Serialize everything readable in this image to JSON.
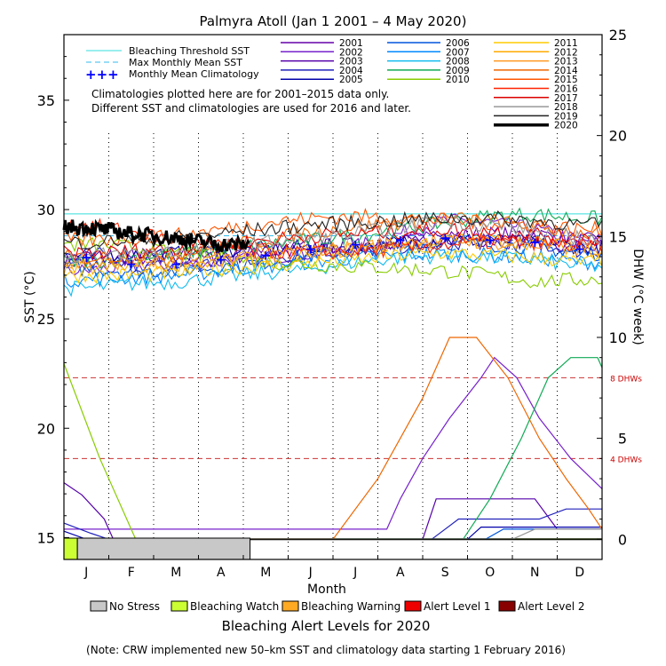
{
  "title": "Palmyra Atoll      (Jan 1 2001 – 4 May 2020)",
  "chart_data": {
    "type": "line",
    "title": "Palmyra Atoll      (Jan 1 2001 – 4 May 2020)",
    "xlabel": "Month",
    "ylabel_left": "SST (°C)",
    "ylabel_right": "DHW (°C week)",
    "xlim": [
      0,
      12
    ],
    "ylim_sst": [
      14,
      38
    ],
    "ylim_dhw": [
      -1,
      25
    ],
    "x_ticks": [
      {
        "pos": 0.5,
        "label": "J"
      },
      {
        "pos": 1.5,
        "label": "F"
      },
      {
        "pos": 2.5,
        "label": "M"
      },
      {
        "pos": 3.5,
        "label": "A"
      },
      {
        "pos": 4.5,
        "label": "M"
      },
      {
        "pos": 5.5,
        "label": "J"
      },
      {
        "pos": 6.5,
        "label": "J"
      },
      {
        "pos": 7.5,
        "label": "A"
      },
      {
        "pos": 8.5,
        "label": "S"
      },
      {
        "pos": 9.5,
        "label": "O"
      },
      {
        "pos": 10.5,
        "label": "N"
      },
      {
        "pos": 11.5,
        "label": "D"
      }
    ],
    "y_ticks_sst": [
      15,
      20,
      25,
      30,
      35
    ],
    "y_ticks_dhw": [
      0,
      5,
      10,
      15,
      20,
      25
    ],
    "bleaching_threshold_sst": 29.8,
    "max_monthly_mean_sst": 28.8,
    "monthly_mean_climatology": [
      27.8,
      27.5,
      27.5,
      27.7,
      27.9,
      28.2,
      28.4,
      28.6,
      28.7,
      28.6,
      28.5,
      28.2
    ],
    "dhw_reference_lines": [
      {
        "value": 8,
        "label": "8 DHWs"
      },
      {
        "value": 4,
        "label": "4 DHWs"
      }
    ],
    "legend_items": [
      {
        "label": "Bleaching Threshold SST",
        "color": "#33dddd",
        "style": "solid"
      },
      {
        "label": "Max Monthly Mean SST",
        "color": "#33bbee",
        "style": "dashed"
      },
      {
        "label": "Monthly Mean Climatology",
        "color": "#0000ff",
        "style": "plus"
      }
    ],
    "note_lines": [
      "Climatologies plotted here are for 2001–2015 data only.",
      "Different SST and climatologies are used for 2016 and later."
    ],
    "series": [
      {
        "name": "2001",
        "color": "#6600aa",
        "sst": [
          27.6,
          27.8,
          27.7,
          27.8,
          28.0,
          28.1,
          28.2,
          28.5,
          28.8,
          28.9,
          28.9,
          28.6
        ]
      },
      {
        "name": "2002",
        "color": "#7722cc",
        "sst": [
          27.2,
          27.4,
          27.5,
          27.6,
          27.8,
          28.0,
          28.3,
          28.9,
          29.5,
          29.4,
          29.1,
          28.6
        ],
        "dhw": [
          [
            0,
            0.5
          ],
          [
            7.2,
            0.5
          ],
          [
            7.5,
            2
          ],
          [
            8.0,
            4
          ],
          [
            8.6,
            6
          ],
          [
            9.3,
            8
          ],
          [
            9.6,
            9
          ],
          [
            10.1,
            8
          ],
          [
            10.6,
            6
          ],
          [
            11.3,
            4
          ],
          [
            12.0,
            2.5
          ]
        ]
      },
      {
        "name": "2003",
        "color": "#5500aa",
        "sst": [
          27.8,
          27.9,
          27.9,
          28.0,
          28.1,
          28.3,
          28.4,
          28.6,
          28.7,
          28.6,
          28.5,
          28.3
        ],
        "dhw": [
          [
            0,
            2.8
          ],
          [
            0.4,
            2.2
          ],
          [
            0.9,
            1
          ],
          [
            1.1,
            0
          ],
          [
            8.0,
            0
          ],
          [
            8.3,
            2
          ],
          [
            9.5,
            2
          ],
          [
            10.5,
            2
          ],
          [
            11.0,
            0.5
          ],
          [
            12.0,
            0.5
          ]
        ]
      },
      {
        "name": "2004",
        "color": "#2222bb",
        "sst": [
          27.5,
          27.4,
          27.4,
          27.6,
          27.8,
          28.0,
          28.1,
          28.3,
          28.5,
          28.5,
          28.4,
          28.1
        ],
        "dhw": [
          [
            0,
            0.8
          ],
          [
            0.6,
            0.3
          ],
          [
            1.0,
            0
          ],
          [
            8.2,
            0
          ],
          [
            8.8,
            1
          ],
          [
            9.6,
            1
          ],
          [
            10.6,
            1
          ],
          [
            11.2,
            1.5
          ],
          [
            12.0,
            1.5
          ]
        ]
      },
      {
        "name": "2005",
        "color": "#0000aa",
        "sst": [
          27.9,
          28.0,
          28.0,
          28.1,
          28.2,
          28.3,
          28.3,
          28.5,
          28.6,
          28.6,
          28.5,
          28.3
        ],
        "dhw": [
          [
            0,
            0.4
          ],
          [
            0.5,
            0
          ],
          [
            9.0,
            0
          ],
          [
            9.3,
            0.6
          ],
          [
            10.0,
            0.6
          ],
          [
            12.0,
            0.6
          ]
        ]
      },
      {
        "name": "2006",
        "color": "#0055dd",
        "sst": [
          27.3,
          27.2,
          27.2,
          27.4,
          27.6,
          27.9,
          28.1,
          28.3,
          28.5,
          28.4,
          28.3,
          28.0
        ],
        "dhw": [
          [
            0,
            0
          ],
          [
            9.4,
            0
          ],
          [
            9.8,
            0.5
          ],
          [
            11.0,
            0.5
          ],
          [
            12.0,
            0.5
          ]
        ]
      },
      {
        "name": "2007",
        "color": "#0088ff",
        "sst": [
          26.8,
          26.9,
          27.0,
          27.2,
          27.4,
          27.6,
          27.8,
          27.9,
          28.0,
          27.9,
          27.8,
          27.6
        ]
      },
      {
        "name": "2008",
        "color": "#11bbee",
        "sst": [
          26.4,
          26.6,
          26.7,
          26.9,
          27.1,
          27.3,
          27.6,
          27.8,
          27.9,
          27.8,
          27.7,
          27.4
        ]
      },
      {
        "name": "2009",
        "color": "#11aa55",
        "sst": [
          27.6,
          27.8,
          28.0,
          28.2,
          28.4,
          28.6,
          28.8,
          29.1,
          29.4,
          29.7,
          29.8,
          29.6
        ],
        "dhw": [
          [
            0,
            0
          ],
          [
            8.9,
            0
          ],
          [
            9.5,
            2
          ],
          [
            10.2,
            5
          ],
          [
            10.8,
            8
          ],
          [
            11.3,
            9
          ],
          [
            11.9,
            9
          ],
          [
            12.0,
            8.5
          ]
        ]
      },
      {
        "name": "2010",
        "color": "#88cc00",
        "sst": [
          28.4,
          28.3,
          28.0,
          27.8,
          27.6,
          27.5,
          27.4,
          27.3,
          27.2,
          27.0,
          26.7,
          26.8
        ],
        "dhw": [
          [
            0,
            8.7
          ],
          [
            0.8,
            4
          ],
          [
            1.6,
            0
          ],
          [
            12.0,
            0
          ]
        ]
      },
      {
        "name": "2011",
        "color": "#ffcc00",
        "sst": [
          27.0,
          27.0,
          27.1,
          27.3,
          27.4,
          27.6,
          27.7,
          27.9,
          28.0,
          27.9,
          27.8,
          27.6
        ]
      },
      {
        "name": "2012",
        "color": "#ffaa00",
        "sst": [
          27.3,
          27.4,
          27.5,
          27.6,
          27.8,
          28.0,
          28.2,
          28.4,
          28.6,
          28.6,
          28.5,
          28.2
        ]
      },
      {
        "name": "2013",
        "color": "#ff9922",
        "sst": [
          27.5,
          27.6,
          27.6,
          27.8,
          28.0,
          28.1,
          28.3,
          28.5,
          28.6,
          28.5,
          28.4,
          28.2
        ]
      },
      {
        "name": "2014",
        "color": "#ee6600",
        "sst": [
          27.8,
          27.9,
          28.0,
          28.3,
          28.6,
          29.0,
          29.2,
          29.4,
          29.6,
          29.5,
          29.2,
          28.9
        ],
        "dhw": [
          [
            0,
            0
          ],
          [
            6.0,
            0
          ],
          [
            7.0,
            3
          ],
          [
            8.0,
            7
          ],
          [
            8.6,
            10
          ],
          [
            9.2,
            10
          ],
          [
            9.9,
            8
          ],
          [
            10.6,
            5
          ],
          [
            11.2,
            3
          ],
          [
            11.7,
            1.5
          ],
          [
            12.0,
            0.5
          ]
        ]
      },
      {
        "name": "2015",
        "color": "#ff5500",
        "sst": [
          28.6,
          28.7,
          28.8,
          29.1,
          29.4,
          29.6,
          29.7,
          29.6,
          29.5,
          29.4,
          29.3,
          29.1
        ]
      },
      {
        "name": "2016",
        "color": "#ff2200",
        "sst": [
          29.3,
          29.0,
          28.6,
          28.3,
          28.1,
          28.0,
          28.1,
          28.2,
          28.4,
          28.5,
          28.5,
          28.3
        ]
      },
      {
        "name": "2017",
        "color": "#dd0000",
        "sst": [
          28.0,
          28.1,
          28.2,
          28.4,
          28.6,
          28.8,
          28.9,
          29.0,
          29.1,
          29.0,
          28.9,
          28.7
        ]
      },
      {
        "name": "2018",
        "color": "#999999",
        "sst": [
          27.9,
          28.0,
          28.1,
          28.3,
          28.5,
          28.7,
          28.9,
          29.2,
          29.5,
          29.3,
          29.0,
          28.7
        ],
        "dhw": [
          [
            0,
            0
          ],
          [
            10.0,
            0
          ],
          [
            10.5,
            0.5
          ],
          [
            12.0,
            0.5
          ]
        ]
      },
      {
        "name": "2019",
        "color": "#222222",
        "sst": [
          28.5,
          28.6,
          28.7,
          28.9,
          29.1,
          29.3,
          29.4,
          29.5,
          29.6,
          29.6,
          29.5,
          29.3
        ]
      },
      {
        "name": "2020",
        "color": "#000000",
        "sst": [
          29.2,
          28.9,
          28.7,
          28.4,
          28.4
        ],
        "dhw": [
          [
            0,
            0
          ],
          [
            12.0,
            0
          ]
        ]
      }
    ],
    "alert_bar": [
      {
        "start": 0.0,
        "end": 0.3,
        "level": "Bleaching Watch"
      },
      {
        "start": 0.3,
        "end": 4.15,
        "level": "No Stress"
      }
    ],
    "alert_legend_title": "Bleaching Alert Levels for 2020",
    "alert_levels": [
      {
        "label": "No Stress",
        "color": "#c8c8c8"
      },
      {
        "label": "Bleaching Watch",
        "color": "#ccff33"
      },
      {
        "label": "Bleaching Warning",
        "color": "#ffaa22"
      },
      {
        "label": "Alert Level 1",
        "color": "#ee0000"
      },
      {
        "label": "Alert Level 2",
        "color": "#880000"
      }
    ],
    "footnote": "(Note: CRW implemented new 50–km SST and climatology data starting 1 February 2016)"
  }
}
